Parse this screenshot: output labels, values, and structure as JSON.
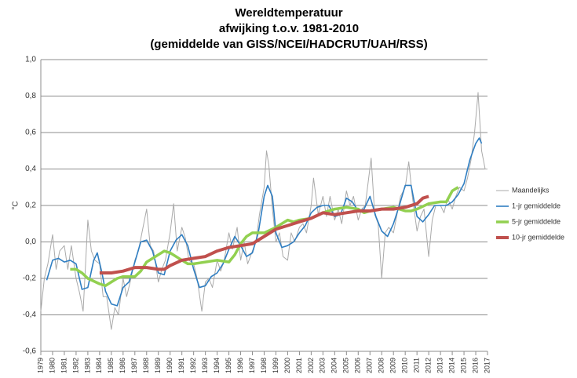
{
  "chart_data": {
    "type": "line",
    "title": "Wereldtemperatuur",
    "subtitle": [
      "afwijking t.o.v. 1981-2010",
      "(gemiddelde van GISS/NCEI/HADCRUT/UAH/RSS)"
    ],
    "y_label": "°C",
    "xlim": [
      1979,
      2017
    ],
    "xticks": [
      1979,
      1980,
      1981,
      1982,
      1983,
      1984,
      1985,
      1986,
      1987,
      1988,
      1989,
      1990,
      1991,
      1992,
      1993,
      1994,
      1995,
      1996,
      1997,
      1998,
      1999,
      2000,
      2001,
      2002,
      2003,
      2004,
      2005,
      2006,
      2007,
      2008,
      2009,
      2010,
      2011,
      2012,
      2013,
      2014,
      2015,
      2016,
      2017
    ],
    "ylim": [
      -0.6,
      1.0
    ],
    "yticks": [
      {
        "value": -0.6,
        "label": "-0,6"
      },
      {
        "value": -0.4,
        "label": "-0,4"
      },
      {
        "value": -0.2,
        "label": "-0,2"
      },
      {
        "value": 0,
        "label": "0,0"
      },
      {
        "value": 0.2,
        "label": "0,2"
      },
      {
        "value": 0.4,
        "label": "0,4"
      },
      {
        "value": 0.6,
        "label": "0,6"
      },
      {
        "value": 0.8,
        "label": "0,8"
      },
      {
        "value": 1.0,
        "label": "1,0"
      }
    ],
    "grid": true,
    "legend": "right",
    "series": [
      {
        "name": "Maandelijks",
        "color": "#aaaaaa",
        "width": 1,
        "x": [
          1979,
          1979.3,
          1979.6,
          1980,
          1980.3,
          1980.6,
          1981,
          1981.3,
          1981.6,
          1982,
          1982.3,
          1982.6,
          1983,
          1983.3,
          1983.6,
          1984,
          1984.3,
          1984.6,
          1985,
          1985.3,
          1985.6,
          1986,
          1986.3,
          1986.6,
          1987,
          1987.3,
          1987.6,
          1988,
          1988.3,
          1988.6,
          1989,
          1989.3,
          1989.6,
          1990,
          1990.3,
          1990.6,
          1991,
          1991.3,
          1991.6,
          1992,
          1992.3,
          1992.7,
          1993,
          1993.3,
          1993.6,
          1994,
          1994.3,
          1994.6,
          1995,
          1995.3,
          1995.7,
          1996,
          1996.3,
          1996.6,
          1997,
          1997.3,
          1997.6,
          1998,
          1998.2,
          1998.4,
          1998.7,
          1999,
          1999.3,
          1999.6,
          2000,
          2000.3,
          2000.6,
          2001,
          2001.3,
          2001.6,
          2002,
          2002.2,
          2002.6,
          2003,
          2003.3,
          2003.6,
          2004,
          2004.3,
          2004.6,
          2005,
          2005.3,
          2005.6,
          2006,
          2006.3,
          2006.6,
          2007.1,
          2007.4,
          2007.7,
          2008,
          2008.3,
          2008.6,
          2009,
          2009.3,
          2009.6,
          2010,
          2010.3,
          2010.6,
          2011,
          2011.3,
          2011.6,
          2012,
          2012.3,
          2012.6,
          2013,
          2013.3,
          2013.6,
          2014,
          2014.3,
          2014.6,
          2015,
          2015.3,
          2015.6,
          2015.9,
          2016.2,
          2016.5,
          2016.8,
          2017
        ],
        "values": [
          -0.38,
          -0.2,
          -0.12,
          0.04,
          -0.15,
          -0.05,
          -0.02,
          -0.15,
          -0.02,
          -0.2,
          -0.28,
          -0.38,
          0.12,
          -0.05,
          -0.1,
          -0.12,
          -0.3,
          -0.3,
          -0.48,
          -0.36,
          -0.4,
          -0.2,
          -0.3,
          -0.22,
          -0.1,
          -0.05,
          0.05,
          0.18,
          -0.02,
          -0.05,
          -0.22,
          -0.15,
          -0.1,
          0.05,
          0.21,
          -0.05,
          0.08,
          0.02,
          -0.1,
          -0.12,
          -0.2,
          -0.38,
          -0.22,
          -0.2,
          -0.25,
          -0.1,
          -0.16,
          -0.1,
          0.05,
          -0.04,
          0.08,
          -0.1,
          0.0,
          -0.12,
          -0.05,
          0.0,
          0.15,
          0.3,
          0.5,
          0.42,
          0.18,
          0.0,
          0.05,
          -0.08,
          -0.1,
          0.05,
          0.0,
          0.08,
          0.1,
          0.05,
          0.2,
          0.35,
          0.15,
          0.25,
          0.14,
          0.25,
          0.12,
          0.18,
          0.1,
          0.28,
          0.2,
          0.25,
          0.12,
          0.18,
          0.2,
          0.46,
          0.15,
          0.1,
          -0.2,
          0.05,
          0.08,
          0.05,
          0.15,
          0.25,
          0.3,
          0.44,
          0.25,
          0.06,
          0.14,
          0.18,
          -0.08,
          0.12,
          0.2,
          0.2,
          0.16,
          0.24,
          0.18,
          0.25,
          0.3,
          0.28,
          0.35,
          0.45,
          0.6,
          0.82,
          0.5,
          0.4,
          0.4
        ]
      },
      {
        "name": "1-jr gemiddelde",
        "color": "#2f7ec2",
        "width": 1.6,
        "x": [
          1979.5,
          1980,
          1980.5,
          1981,
          1981.5,
          1982,
          1982.5,
          1983,
          1983.5,
          1983.8,
          1984.2,
          1984.5,
          1985,
          1985.5,
          1986,
          1986.5,
          1987,
          1987.5,
          1988,
          1988.5,
          1989,
          1989.5,
          1990,
          1990.5,
          1991,
          1991.5,
          1992,
          1992.5,
          1993,
          1993.5,
          1994,
          1994.5,
          1995,
          1995.5,
          1996,
          1996.5,
          1997,
          1997.5,
          1998,
          1998.3,
          1998.7,
          1999,
          1999.5,
          2000,
          2000.5,
          2001,
          2001.5,
          2002,
          2002.5,
          2003,
          2003.5,
          2004,
          2004.5,
          2005,
          2005.5,
          2006,
          2006.5,
          2007,
          2007.5,
          2008,
          2008.5,
          2009,
          2009.5,
          2010,
          2010.5,
          2011,
          2011.5,
          2012,
          2012.5,
          2013,
          2013.5,
          2014,
          2014.5,
          2015,
          2015.5,
          2016,
          2016.3,
          2016.5
        ],
        "values": [
          -0.21,
          -0.1,
          -0.09,
          -0.11,
          -0.1,
          -0.12,
          -0.26,
          -0.25,
          -0.1,
          -0.06,
          -0.17,
          -0.27,
          -0.34,
          -0.35,
          -0.25,
          -0.22,
          -0.11,
          0.0,
          0.01,
          -0.05,
          -0.17,
          -0.18,
          -0.05,
          0.01,
          0.04,
          -0.02,
          -0.15,
          -0.25,
          -0.24,
          -0.19,
          -0.17,
          -0.12,
          -0.04,
          0.03,
          -0.02,
          -0.08,
          -0.06,
          0.05,
          0.25,
          0.31,
          0.25,
          0.05,
          -0.03,
          -0.02,
          0.0,
          0.05,
          0.09,
          0.16,
          0.19,
          0.2,
          0.2,
          0.14,
          0.15,
          0.24,
          0.22,
          0.17,
          0.18,
          0.25,
          0.14,
          0.06,
          0.03,
          0.1,
          0.2,
          0.31,
          0.31,
          0.14,
          0.11,
          0.15,
          0.2,
          0.2,
          0.2,
          0.22,
          0.26,
          0.32,
          0.45,
          0.54,
          0.57,
          0.54
        ]
      },
      {
        "name": "5-jr gemiddelde",
        "color": "#92d050",
        "width": 3.5,
        "x": [
          1981.5,
          1982,
          1982.5,
          1983,
          1984,
          1984.5,
          1985,
          1985.5,
          1986,
          1987,
          1987.5,
          1988,
          1989,
          1989.5,
          1990,
          1991,
          1991.5,
          1992,
          1993,
          1994,
          1995,
          1995.5,
          1996,
          1996.5,
          1997,
          1998,
          1999,
          2000,
          2000.5,
          2001,
          2002,
          2003,
          2004,
          2005,
          2006,
          2006.5,
          2007,
          2008,
          2009,
          2010,
          2010.5,
          2011,
          2012,
          2013,
          2013.5,
          2014,
          2014.5
        ],
        "values": [
          -0.15,
          -0.15,
          -0.17,
          -0.2,
          -0.23,
          -0.24,
          -0.22,
          -0.2,
          -0.19,
          -0.19,
          -0.16,
          -0.11,
          -0.07,
          -0.05,
          -0.06,
          -0.1,
          -0.12,
          -0.12,
          -0.11,
          -0.1,
          -0.11,
          -0.07,
          -0.01,
          0.03,
          0.05,
          0.05,
          0.08,
          0.12,
          0.11,
          0.12,
          0.13,
          0.16,
          0.18,
          0.19,
          0.18,
          0.16,
          0.17,
          0.18,
          0.19,
          0.17,
          0.17,
          0.18,
          0.21,
          0.22,
          0.22,
          0.28,
          0.3
        ]
      },
      {
        "name": "10-jr gemiddelde",
        "color": "#c0504d",
        "width": 4,
        "x": [
          1984,
          1985,
          1986,
          1987,
          1988,
          1989,
          1989.5,
          1990,
          1991,
          1992,
          1993,
          1994,
          1995,
          1996,
          1997,
          1998,
          1999,
          2000,
          2001,
          2002,
          2003,
          2004,
          2005,
          2006,
          2007,
          2008,
          2009,
          2010,
          2011,
          2011.5,
          2012
        ],
        "values": [
          -0.17,
          -0.17,
          -0.16,
          -0.14,
          -0.14,
          -0.15,
          -0.15,
          -0.13,
          -0.1,
          -0.09,
          -0.08,
          -0.05,
          -0.03,
          -0.02,
          -0.01,
          0.03,
          0.07,
          0.09,
          0.11,
          0.13,
          0.16,
          0.15,
          0.16,
          0.17,
          0.17,
          0.18,
          0.18,
          0.19,
          0.21,
          0.24,
          0.25
        ]
      }
    ]
  }
}
